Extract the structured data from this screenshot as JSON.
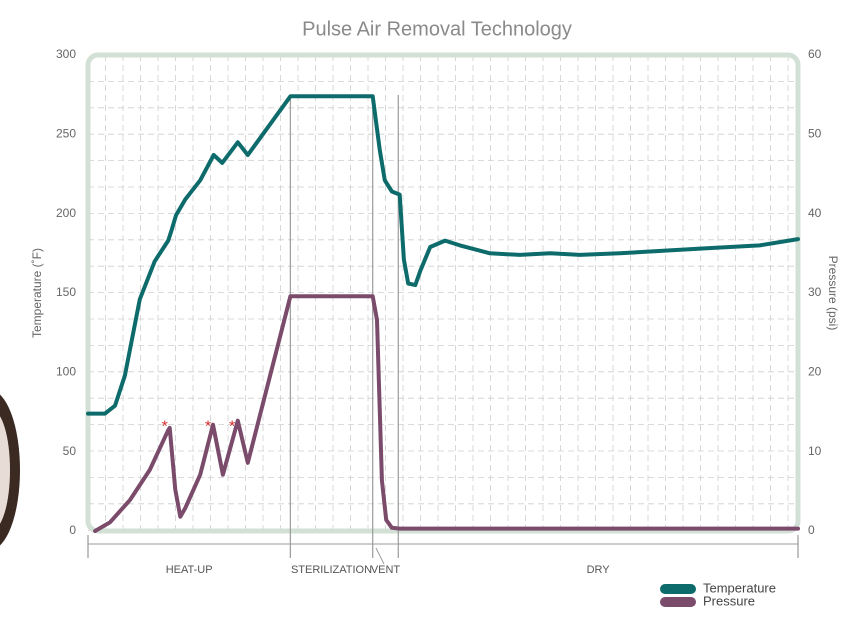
{
  "chart_data": {
    "type": "line",
    "title": "Pulse Air Removal Technology",
    "ylabel": "Temperature (˚F)",
    "y2label": "Pressure (psi)",
    "xlim": [
      0,
      100
    ],
    "ylim": [
      0,
      300
    ],
    "yticks": [
      0,
      50,
      100,
      150,
      200,
      250,
      300
    ],
    "y2lim": [
      0,
      60
    ],
    "y2ticks": [
      0,
      10,
      20,
      30,
      40,
      50,
      60
    ],
    "grid": true,
    "legend": "bottom-right",
    "phases": [
      {
        "label": "HEAT-UP",
        "start": 0,
        "end": 28.5
      },
      {
        "label": "STERILIZATION",
        "start": 28.5,
        "end": 40.1
      },
      {
        "label": "VENT",
        "start": 40.1,
        "end": 43.7
      },
      {
        "label": "DRY",
        "start": 43.7,
        "end": 100
      }
    ],
    "series": [
      {
        "name": "Temperature",
        "color": "#0e6b6b",
        "x": [
          0,
          2.4,
          3.8,
          5.2,
          7.3,
          9.4,
          11.3,
          11.8,
          12.4,
          13.7,
          15.8,
          17.7,
          18.9,
          21.1,
          22.5,
          28.5,
          40.1,
          41.1,
          41.8,
          42.8,
          43.9,
          44.5,
          45.1,
          46.1,
          46.8,
          48.2,
          50.3,
          52.4,
          56.6,
          60.8,
          65.1,
          69.3,
          74.9,
          86.2,
          94.6,
          100
        ],
        "values": [
          74,
          74,
          79,
          98,
          146,
          170,
          183,
          190,
          199,
          209,
          221,
          237,
          232,
          245,
          237,
          274,
          274,
          240,
          221,
          214,
          212,
          171,
          156,
          155,
          164,
          179,
          183,
          180,
          175,
          174,
          175,
          174,
          175,
          178,
          180,
          184
        ]
      },
      {
        "name": "Pressure",
        "color": "#7a4b6a",
        "axis": "y2",
        "x": [
          1.0,
          3.1,
          5.9,
          8.7,
          11.3,
          11.5,
          12.3,
          13.0,
          13.7,
          15.8,
          17.6,
          19.0,
          21.1,
          22.5,
          28.5,
          40.1,
          40.7,
          41.4,
          42.0,
          42.8,
          43.9,
          100
        ],
        "values": [
          0,
          1.1,
          3.9,
          7.7,
          12.7,
          13,
          5.2,
          1.8,
          2.9,
          7.1,
          13.4,
          7.1,
          13.9,
          8.6,
          29.6,
          29.6,
          26.6,
          6.4,
          1.4,
          0.4,
          0.3,
          0.3
        ]
      }
    ],
    "annotations": [
      {
        "text": "*",
        "x": 10.8,
        "y": 13.6
      },
      {
        "text": "*",
        "x": 16.9,
        "y": 13.6
      },
      {
        "text": "*",
        "x": 20.3,
        "y": 13.6
      }
    ],
    "annotation_color": "#d62b2b"
  }
}
